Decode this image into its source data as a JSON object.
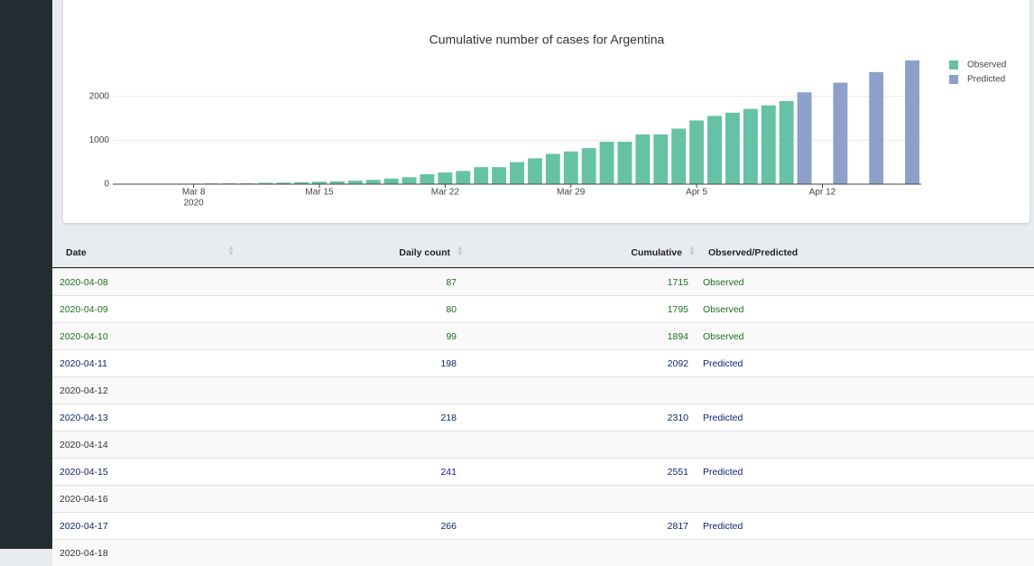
{
  "chart_data": {
    "type": "bar",
    "title": "Cumulative number of cases for Argentina",
    "x": [
      "2020-03-04",
      "2020-03-05",
      "2020-03-06",
      "2020-03-07",
      "2020-03-08",
      "2020-03-09",
      "2020-03-10",
      "2020-03-11",
      "2020-03-12",
      "2020-03-13",
      "2020-03-14",
      "2020-03-15",
      "2020-03-16",
      "2020-03-17",
      "2020-03-18",
      "2020-03-19",
      "2020-03-20",
      "2020-03-21",
      "2020-03-22",
      "2020-03-23",
      "2020-03-24",
      "2020-03-25",
      "2020-03-26",
      "2020-03-27",
      "2020-03-28",
      "2020-03-29",
      "2020-03-30",
      "2020-03-31",
      "2020-04-01",
      "2020-04-02",
      "2020-04-03",
      "2020-04-04",
      "2020-04-05",
      "2020-04-06",
      "2020-04-07",
      "2020-04-08",
      "2020-04-09",
      "2020-04-10",
      "2020-04-11",
      "2020-04-12",
      "2020-04-13",
      "2020-04-14",
      "2020-04-15",
      "2020-04-16",
      "2020-04-17"
    ],
    "series": [
      {
        "name": "Observed",
        "color": "#66c2a5",
        "values": [
          1,
          2,
          8,
          9,
          12,
          17,
          19,
          19,
          31,
          34,
          45,
          56,
          65,
          79,
          97,
          128,
          158,
          225,
          266,
          301,
          387,
          387,
          502,
          589,
          690,
          745,
          820,
          966,
          966,
          1133,
          1133,
          1265,
          1451,
          1554,
          1628,
          1715,
          1795,
          1894,
          null,
          null,
          null,
          null,
          null,
          null,
          null
        ]
      },
      {
        "name": "Predicted",
        "color": "#8da0cb",
        "values": [
          null,
          null,
          null,
          null,
          null,
          null,
          null,
          null,
          null,
          null,
          null,
          null,
          null,
          null,
          null,
          null,
          null,
          null,
          null,
          null,
          null,
          null,
          null,
          null,
          null,
          null,
          null,
          null,
          null,
          null,
          null,
          null,
          null,
          null,
          null,
          null,
          null,
          null,
          2092,
          null,
          2310,
          null,
          2551,
          null,
          2817
        ]
      }
    ],
    "xlim": [
      "2020-03-03T12:00:00Z",
      "2020-04-17T12:00:00Z"
    ],
    "xticks": [
      {
        "value": "2020-03-08",
        "label": "Mar 8"
      },
      {
        "value": "2020-03-15",
        "label": "Mar 15"
      },
      {
        "value": "2020-03-22",
        "label": "Mar 22"
      },
      {
        "value": "2020-03-29",
        "label": "Mar 29"
      },
      {
        "value": "2020-04-05",
        "label": "Apr 5"
      },
      {
        "value": "2020-04-12",
        "label": "Apr 12"
      }
    ],
    "x_year_label": "2020",
    "ylim": [
      0,
      2960
    ],
    "yticks": [
      0,
      1000,
      2000
    ],
    "grid": true,
    "legend": "top-right"
  },
  "table": {
    "headers": [
      "Date",
      "Daily count",
      "Cumulative",
      "Observed/Predicted"
    ],
    "status_colors": {
      "Observed": "#1f6e1f",
      "Predicted": "#0b1f6e"
    },
    "rows": [
      [
        "2020-04-08",
        "87",
        "1715",
        "Observed"
      ],
      [
        "2020-04-09",
        "80",
        "1795",
        "Observed"
      ],
      [
        "2020-04-10",
        "99",
        "1894",
        "Observed"
      ],
      [
        "2020-04-11",
        "198",
        "2092",
        "Predicted"
      ],
      [
        "2020-04-12",
        null,
        null,
        null
      ],
      [
        "2020-04-13",
        "218",
        "2310",
        "Predicted"
      ],
      [
        "2020-04-14",
        null,
        null,
        null
      ],
      [
        "2020-04-15",
        "241",
        "2551",
        "Predicted"
      ],
      [
        "2020-04-16",
        null,
        null,
        null
      ],
      [
        "2020-04-17",
        "266",
        "2817",
        "Predicted"
      ],
      [
        "2020-04-18",
        null,
        null,
        null
      ]
    ]
  }
}
